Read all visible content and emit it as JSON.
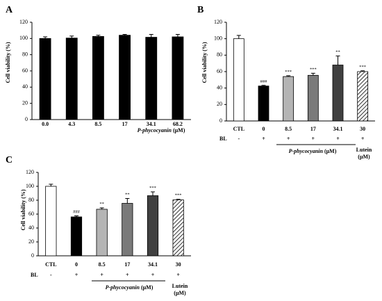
{
  "figure": {
    "chart_data": [
      {
        "id": "A",
        "type": "bar",
        "panel_label": "A",
        "ylabel": "Cell viability (%)",
        "ylim": [
          0,
          120
        ],
        "yticks": [
          "0",
          "20",
          "40",
          "60",
          "80",
          "100",
          "120"
        ],
        "xlabel": "P-phycocyanin (μM)",
        "xlabel_italic": "P-phycocyanin",
        "xlabel_unit": " (μM)",
        "categories": [
          "0.0",
          "4.3",
          "8.5",
          "17",
          "34.1",
          "68.2"
        ],
        "values": [
          100,
          100.5,
          102.5,
          104,
          101.5,
          102
        ],
        "errors": [
          2,
          2.5,
          1.5,
          1,
          3.5,
          3
        ],
        "colors": [
          "#000000",
          "#000000",
          "#000000",
          "#000000",
          "#000000",
          "#000000"
        ],
        "patterns": [
          "",
          "",
          "",
          "",
          "",
          ""
        ],
        "sig": [
          "",
          "",
          "",
          "",
          "",
          ""
        ],
        "grid": false,
        "legend": "none"
      },
      {
        "id": "B",
        "type": "bar",
        "panel_label": "B",
        "ylabel": "Cell viability (%)",
        "ylim": [
          0,
          120
        ],
        "yticks": [
          "0",
          "20",
          "40",
          "60",
          "80",
          "100",
          "120"
        ],
        "categories": [
          "CTL",
          "0",
          "8.5",
          "17",
          "34.1",
          "30"
        ],
        "bl_row_label": "BL",
        "bl": [
          "-",
          "+",
          "+",
          "+",
          "+",
          "+"
        ],
        "group_label_italic": "P-phycocyanin",
        "group_label_unit": " (μM)",
        "lutein_label": [
          "Lutein",
          "(μM)"
        ],
        "values": [
          100,
          42.5,
          54,
          55.5,
          68,
          60
        ],
        "errors": [
          4,
          0.8,
          1,
          2.5,
          11,
          1
        ],
        "colors": [
          "#ffffff",
          "#000000",
          "#b4b4b4",
          "#7a7a7a",
          "#404040",
          "#ffffff"
        ],
        "patterns": [
          "",
          "",
          "",
          "",
          "",
          "hatch"
        ],
        "sig": [
          "",
          "###",
          "***",
          "***",
          "**",
          "***"
        ],
        "grid": false,
        "legend": "none"
      },
      {
        "id": "C",
        "type": "bar",
        "panel_label": "C",
        "ylabel": "Cell viability (%)",
        "ylim": [
          0,
          120
        ],
        "yticks": [
          "0",
          "20",
          "40",
          "60",
          "80",
          "100",
          "120"
        ],
        "categories": [
          "CTL",
          "0",
          "8.5",
          "17",
          "34.1",
          "30"
        ],
        "bl_row_label": "BL",
        "bl": [
          "-",
          "+",
          "+",
          "+",
          "+",
          "+"
        ],
        "group_label_italic": "P-phycocyanin",
        "group_label_unit": " (μM)",
        "lutein_label": [
          "Lutein",
          "(μM)"
        ],
        "values": [
          100,
          56,
          67,
          75.5,
          86.5,
          80.5
        ],
        "errors": [
          3,
          1.5,
          2,
          7,
          5.5,
          0.8
        ],
        "colors": [
          "#ffffff",
          "#000000",
          "#b4b4b4",
          "#7a7a7a",
          "#404040",
          "#ffffff"
        ],
        "patterns": [
          "",
          "",
          "",
          "",
          "",
          "hatch"
        ],
        "sig": [
          "",
          "###",
          "**",
          "**",
          "***",
          "***"
        ],
        "grid": false,
        "legend": "none"
      }
    ]
  }
}
